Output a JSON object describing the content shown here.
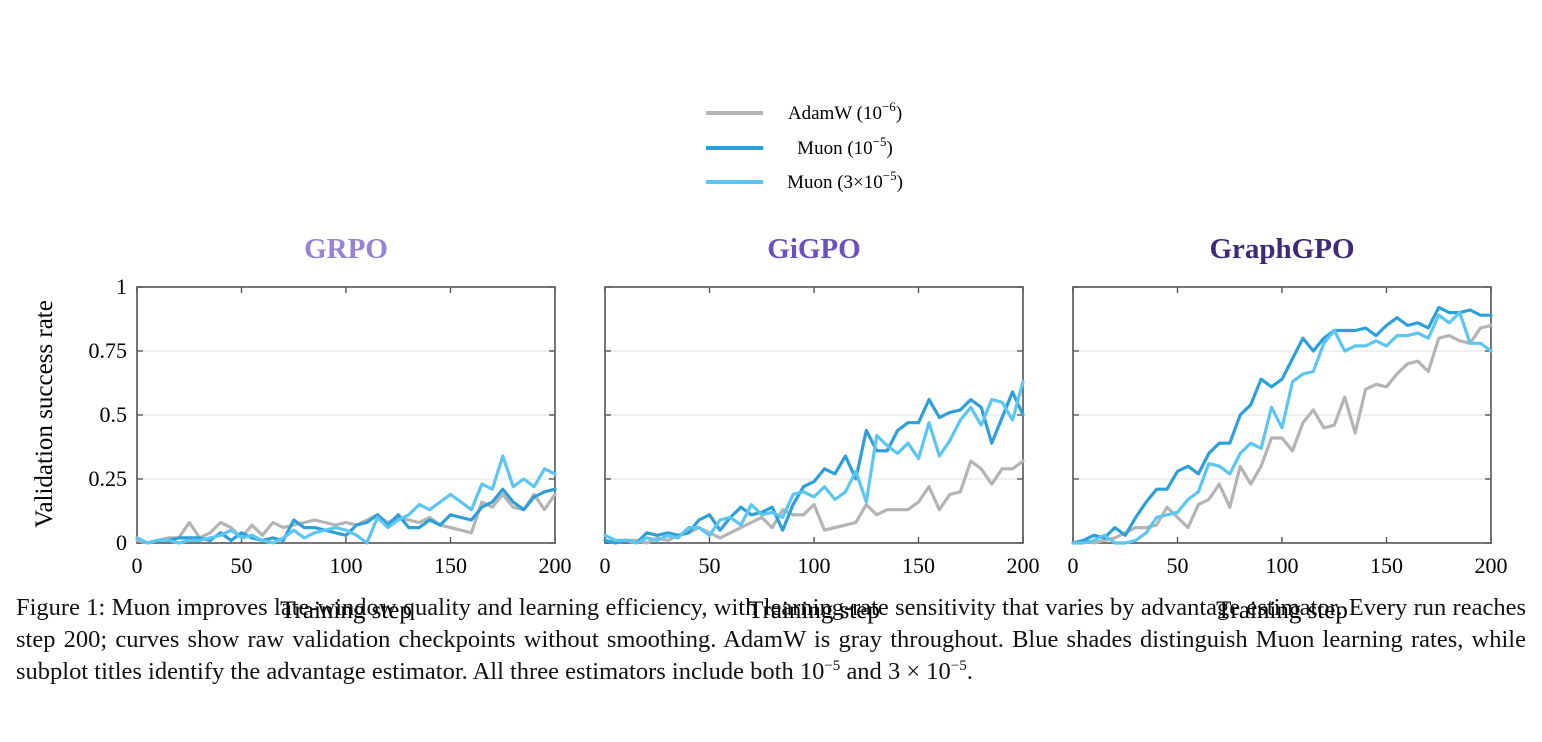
{
  "legend": [
    {
      "label": "AdamW",
      "lr": "10",
      "exp": "−6",
      "color": "#b4b4b4"
    },
    {
      "label": "Muon",
      "lr": "10",
      "exp": "−5",
      "color": "#2d9fd9"
    },
    {
      "label": "Muon",
      "lr": "3×10",
      "exp": "−5",
      "color": "#5cc6f2"
    }
  ],
  "y_axis": {
    "label": "Validation success rate",
    "ticks": [
      "0",
      "0.25",
      "0.5",
      "0.75",
      "1"
    ]
  },
  "x_axis": {
    "label": "Training step",
    "ticks": [
      "0",
      "50",
      "100",
      "150",
      "200"
    ]
  },
  "chart_data": [
    {
      "type": "line",
      "title": "GRPO",
      "title_color": "#9683d8",
      "xlabel": "Training step",
      "ylabel": "Validation success rate",
      "xlim": [
        0,
        200
      ],
      "ylim": [
        0,
        1
      ],
      "grid": "horizontal",
      "series": [
        {
          "name": "AdamW (10^-6)",
          "color": "#b4b4b4",
          "x": [
            0,
            5,
            10,
            15,
            20,
            25,
            30,
            35,
            40,
            45,
            50,
            55,
            60,
            65,
            70,
            75,
            80,
            85,
            90,
            95,
            100,
            105,
            110,
            115,
            120,
            125,
            130,
            135,
            140,
            145,
            150,
            155,
            160,
            165,
            170,
            175,
            180,
            185,
            190,
            195,
            200
          ],
          "y": [
            0.01,
            0.0,
            0.01,
            0.02,
            0.02,
            0.08,
            0.02,
            0.04,
            0.08,
            0.06,
            0.02,
            0.07,
            0.03,
            0.08,
            0.06,
            0.07,
            0.08,
            0.09,
            0.08,
            0.07,
            0.08,
            0.07,
            0.09,
            0.11,
            0.08,
            0.1,
            0.09,
            0.08,
            0.1,
            0.07,
            0.06,
            0.05,
            0.04,
            0.16,
            0.14,
            0.19,
            0.14,
            0.13,
            0.19,
            0.13,
            0.19
          ]
        },
        {
          "name": "Muon (10^-5)",
          "color": "#2d9fd9",
          "x": [
            0,
            5,
            10,
            15,
            20,
            25,
            30,
            35,
            40,
            45,
            50,
            55,
            60,
            65,
            70,
            75,
            80,
            85,
            90,
            95,
            100,
            105,
            110,
            115,
            120,
            125,
            130,
            135,
            140,
            145,
            150,
            155,
            160,
            165,
            170,
            175,
            180,
            185,
            190,
            195,
            200
          ],
          "y": [
            0.02,
            0.0,
            0.01,
            0.01,
            0.02,
            0.02,
            0.02,
            0.01,
            0.04,
            0.01,
            0.04,
            0.02,
            0.01,
            0.02,
            0.01,
            0.09,
            0.06,
            0.06,
            0.05,
            0.04,
            0.03,
            0.07,
            0.08,
            0.11,
            0.07,
            0.11,
            0.06,
            0.06,
            0.09,
            0.07,
            0.11,
            0.1,
            0.09,
            0.14,
            0.16,
            0.21,
            0.16,
            0.13,
            0.18,
            0.2,
            0.21
          ]
        },
        {
          "name": "Muon (3×10^-5)",
          "color": "#5cc6f2",
          "x": [
            0,
            5,
            10,
            15,
            20,
            25,
            30,
            35,
            40,
            45,
            50,
            55,
            60,
            65,
            70,
            75,
            80,
            85,
            90,
            95,
            100,
            105,
            110,
            115,
            120,
            125,
            130,
            135,
            140,
            145,
            150,
            155,
            160,
            165,
            170,
            175,
            180,
            185,
            190,
            195,
            200
          ],
          "y": [
            0.02,
            0.0,
            0.01,
            0.01,
            0.0,
            0.01,
            0.01,
            0.02,
            0.03,
            0.05,
            0.02,
            0.03,
            0.01,
            0.0,
            0.02,
            0.05,
            0.02,
            0.04,
            0.05,
            0.06,
            0.05,
            0.03,
            0.0,
            0.1,
            0.06,
            0.09,
            0.11,
            0.15,
            0.13,
            0.16,
            0.19,
            0.16,
            0.13,
            0.23,
            0.21,
            0.34,
            0.22,
            0.25,
            0.22,
            0.29,
            0.27
          ]
        }
      ]
    },
    {
      "type": "line",
      "title": "GiGPO",
      "title_color": "#6c4fc0",
      "xlabel": "Training step",
      "ylabel": "Validation success rate",
      "xlim": [
        0,
        200
      ],
      "ylim": [
        0,
        1
      ],
      "grid": "horizontal",
      "series": [
        {
          "name": "AdamW (10^-6)",
          "color": "#b4b4b4",
          "x": [
            0,
            5,
            10,
            15,
            20,
            25,
            30,
            35,
            40,
            45,
            50,
            55,
            60,
            65,
            70,
            75,
            80,
            85,
            90,
            95,
            100,
            105,
            110,
            115,
            120,
            125,
            130,
            135,
            140,
            145,
            150,
            155,
            160,
            165,
            170,
            175,
            180,
            185,
            190,
            195,
            200
          ],
          "y": [
            0.01,
            0.0,
            0.01,
            0.01,
            0.0,
            0.02,
            0.01,
            0.03,
            0.04,
            0.06,
            0.04,
            0.02,
            0.04,
            0.06,
            0.08,
            0.1,
            0.06,
            0.13,
            0.11,
            0.11,
            0.15,
            0.05,
            0.06,
            0.07,
            0.08,
            0.15,
            0.11,
            0.13,
            0.13,
            0.13,
            0.16,
            0.22,
            0.13,
            0.19,
            0.2,
            0.32,
            0.29,
            0.23,
            0.29,
            0.29,
            0.32
          ]
        },
        {
          "name": "Muon (10^-5)",
          "color": "#2d9fd9",
          "x": [
            0,
            5,
            10,
            15,
            20,
            25,
            30,
            35,
            40,
            45,
            50,
            55,
            60,
            65,
            70,
            75,
            80,
            85,
            90,
            95,
            100,
            105,
            110,
            115,
            120,
            125,
            130,
            135,
            140,
            145,
            150,
            155,
            160,
            165,
            170,
            175,
            180,
            185,
            190,
            195,
            200
          ],
          "y": [
            0.01,
            0.0,
            0.01,
            0.0,
            0.04,
            0.03,
            0.04,
            0.03,
            0.04,
            0.09,
            0.11,
            0.05,
            0.1,
            0.14,
            0.11,
            0.12,
            0.14,
            0.05,
            0.15,
            0.22,
            0.24,
            0.29,
            0.27,
            0.34,
            0.25,
            0.44,
            0.36,
            0.36,
            0.44,
            0.47,
            0.47,
            0.56,
            0.49,
            0.51,
            0.52,
            0.56,
            0.53,
            0.39,
            0.49,
            0.59,
            0.5
          ]
        },
        {
          "name": "Muon (3×10^-5)",
          "color": "#5cc6f2",
          "x": [
            0,
            5,
            10,
            15,
            20,
            25,
            30,
            35,
            40,
            45,
            50,
            55,
            60,
            65,
            70,
            75,
            80,
            85,
            90,
            95,
            100,
            105,
            110,
            115,
            120,
            125,
            130,
            135,
            140,
            145,
            150,
            155,
            160,
            165,
            170,
            175,
            180,
            185,
            190,
            195,
            200
          ],
          "y": [
            0.03,
            0.01,
            0.01,
            0.0,
            0.02,
            0.01,
            0.03,
            0.02,
            0.06,
            0.06,
            0.03,
            0.09,
            0.1,
            0.07,
            0.15,
            0.11,
            0.12,
            0.1,
            0.19,
            0.2,
            0.18,
            0.22,
            0.17,
            0.2,
            0.28,
            0.16,
            0.42,
            0.38,
            0.35,
            0.39,
            0.33,
            0.47,
            0.34,
            0.4,
            0.48,
            0.53,
            0.46,
            0.56,
            0.55,
            0.48,
            0.63
          ]
        }
      ]
    },
    {
      "type": "line",
      "title": "GraphGPO",
      "title_color": "#3f2a7a",
      "xlabel": "Training step",
      "ylabel": "Validation success rate",
      "xlim": [
        0,
        200
      ],
      "ylim": [
        0,
        1
      ],
      "grid": "horizontal",
      "series": [
        {
          "name": "AdamW (10^-6)",
          "color": "#b4b4b4",
          "x": [
            0,
            5,
            10,
            15,
            20,
            25,
            30,
            35,
            40,
            45,
            50,
            55,
            60,
            65,
            70,
            75,
            80,
            85,
            90,
            95,
            100,
            105,
            110,
            115,
            120,
            125,
            130,
            135,
            140,
            145,
            150,
            155,
            160,
            165,
            170,
            175,
            180,
            185,
            190,
            195,
            200
          ],
          "y": [
            0.0,
            0.01,
            0.0,
            0.01,
            0.02,
            0.04,
            0.06,
            0.06,
            0.07,
            0.14,
            0.1,
            0.06,
            0.15,
            0.17,
            0.23,
            0.14,
            0.3,
            0.23,
            0.3,
            0.41,
            0.41,
            0.36,
            0.47,
            0.52,
            0.45,
            0.46,
            0.57,
            0.43,
            0.6,
            0.62,
            0.61,
            0.66,
            0.7,
            0.71,
            0.67,
            0.8,
            0.81,
            0.79,
            0.78,
            0.84,
            0.85
          ]
        },
        {
          "name": "Muon (10^-5)",
          "color": "#2d9fd9",
          "x": [
            0,
            5,
            10,
            15,
            20,
            25,
            30,
            35,
            40,
            45,
            50,
            55,
            60,
            65,
            70,
            75,
            80,
            85,
            90,
            95,
            100,
            105,
            110,
            115,
            120,
            125,
            130,
            135,
            140,
            145,
            150,
            155,
            160,
            165,
            170,
            175,
            180,
            185,
            190,
            195,
            200
          ],
          "y": [
            0.0,
            0.01,
            0.03,
            0.02,
            0.06,
            0.03,
            0.1,
            0.16,
            0.21,
            0.21,
            0.28,
            0.3,
            0.27,
            0.35,
            0.39,
            0.39,
            0.5,
            0.54,
            0.64,
            0.61,
            0.64,
            0.72,
            0.8,
            0.75,
            0.8,
            0.83,
            0.83,
            0.83,
            0.84,
            0.81,
            0.85,
            0.88,
            0.85,
            0.86,
            0.84,
            0.92,
            0.9,
            0.9,
            0.91,
            0.89,
            0.89
          ]
        },
        {
          "name": "Muon (3×10^-5)",
          "color": "#5cc6f2",
          "x": [
            0,
            5,
            10,
            15,
            20,
            25,
            30,
            35,
            40,
            45,
            50,
            55,
            60,
            65,
            70,
            75,
            80,
            85,
            90,
            95,
            100,
            105,
            110,
            115,
            120,
            125,
            130,
            135,
            140,
            145,
            150,
            155,
            160,
            165,
            170,
            175,
            180,
            185,
            190,
            195,
            200
          ],
          "y": [
            0.0,
            0.0,
            0.01,
            0.03,
            0.0,
            0.0,
            0.01,
            0.04,
            0.1,
            0.11,
            0.12,
            0.17,
            0.2,
            0.31,
            0.3,
            0.27,
            0.35,
            0.39,
            0.37,
            0.53,
            0.45,
            0.63,
            0.66,
            0.67,
            0.78,
            0.83,
            0.75,
            0.77,
            0.77,
            0.79,
            0.77,
            0.81,
            0.81,
            0.82,
            0.8,
            0.89,
            0.86,
            0.9,
            0.78,
            0.78,
            0.75
          ]
        }
      ]
    }
  ],
  "caption": {
    "line1": "Figure 1: Muon improves late-window quality and learning efficiency, with learning-rate sensitivity that varies by advantage estimator. Every run reaches step 200; curves show raw validation checkpoints without smoothing. AdamW is gray throughout. Blue shades distinguish Muon learning rates, while subplot titles identify the advantage estimator. All three estimators include both",
    "m1_base": "10",
    "m1_exp": "−5",
    "and": " and ",
    "m2_base": "3 × 10",
    "m2_exp": "−5",
    "end": "."
  }
}
